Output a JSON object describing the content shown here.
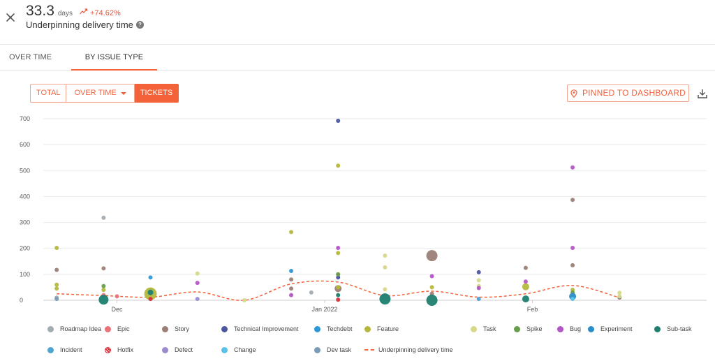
{
  "header": {
    "metric_value": "33.3",
    "metric_unit": "days",
    "metric_change": "+74.62%",
    "metric_title": "Underpinning delivery time",
    "help_glyph": "?",
    "colors": {
      "change": "#e5533d",
      "accent": "#f4623a"
    }
  },
  "tabs": [
    {
      "label": "OVER TIME"
    },
    {
      "label": "BY ISSUE TYPE",
      "active": true
    }
  ],
  "toolbar": {
    "total_label": "TOTAL",
    "overtime_label": "OVER TIME",
    "tickets_label": "TICKETS",
    "pin_label": "PINNED TO DASHBOARD"
  },
  "chart_data": {
    "type": "scatter",
    "title": "",
    "xlabel": "",
    "ylabel": "",
    "x_type": "date",
    "xlim": [
      "2021-11-20",
      "2022-02-27"
    ],
    "ylim": [
      0,
      700
    ],
    "y_ticks": [
      0,
      100,
      200,
      300,
      400,
      500,
      600,
      700
    ],
    "x_ticks": [
      {
        "date": "2021-12-01",
        "label": "Dec"
      },
      {
        "date": "2022-01-01",
        "label": "Jan 2022"
      },
      {
        "date": "2022-02-01",
        "label": "Feb"
      }
    ],
    "grid": "horizontal",
    "legend_position": "bottom",
    "series": [
      {
        "name": "Roadmap Idea",
        "color": "#a2abb0",
        "points": [
          {
            "x": "2021-11-22",
            "y": 10,
            "r": 3
          },
          {
            "x": "2021-11-29",
            "y": 318,
            "r": 3
          },
          {
            "x": "2021-12-30",
            "y": 30,
            "r": 3
          }
        ]
      },
      {
        "name": "Epic",
        "color": "#e8737a",
        "points": [
          {
            "x": "2021-11-29",
            "y": 20,
            "r": 3
          },
          {
            "x": "2021-12-01",
            "y": 15,
            "r": 3
          }
        ]
      },
      {
        "name": "Story",
        "color": "#9c7f77",
        "points": [
          {
            "x": "2021-11-22",
            "y": 117,
            "r": 3
          },
          {
            "x": "2021-11-29",
            "y": 123,
            "r": 3
          },
          {
            "x": "2021-12-27",
            "y": 45,
            "r": 3
          },
          {
            "x": "2021-12-27",
            "y": 80,
            "r": 3
          },
          {
            "x": "2022-01-03",
            "y": 45,
            "r": 5
          },
          {
            "x": "2022-01-03",
            "y": 100,
            "r": 3
          },
          {
            "x": "2022-01-17",
            "y": 172,
            "r": 8
          },
          {
            "x": "2022-01-17",
            "y": 25,
            "r": 3
          },
          {
            "x": "2022-01-31",
            "y": 125,
            "r": 3
          },
          {
            "x": "2022-02-07",
            "y": 387,
            "r": 3
          },
          {
            "x": "2022-02-07",
            "y": 135,
            "r": 3
          },
          {
            "x": "2022-02-14",
            "y": 10,
            "r": 3
          }
        ]
      },
      {
        "name": "Technical Improvement",
        "color": "#4c55a0",
        "points": [
          {
            "x": "2022-01-03",
            "y": 692,
            "r": 3
          },
          {
            "x": "2022-01-03",
            "y": 88,
            "r": 3
          },
          {
            "x": "2022-01-24",
            "y": 108,
            "r": 3
          }
        ]
      },
      {
        "name": "Techdebt",
        "color": "#2e98d9",
        "points": [
          {
            "x": "2021-12-06",
            "y": 88,
            "r": 3
          },
          {
            "x": "2021-12-27",
            "y": 113,
            "r": 3
          },
          {
            "x": "2021-12-06",
            "y": 40,
            "r": 3
          }
        ]
      },
      {
        "name": "Feature",
        "color": "#b5b83c",
        "points": [
          {
            "x": "2021-11-22",
            "y": 202,
            "r": 3
          },
          {
            "x": "2021-11-22",
            "y": 60,
            "r": 3
          },
          {
            "x": "2021-11-22",
            "y": 45,
            "r": 3
          },
          {
            "x": "2021-11-29",
            "y": 40,
            "r": 3
          },
          {
            "x": "2021-12-06",
            "y": 25,
            "r": 9
          },
          {
            "x": "2021-12-27",
            "y": 263,
            "r": 3
          },
          {
            "x": "2022-01-03",
            "y": 519,
            "r": 3
          },
          {
            "x": "2022-01-03",
            "y": 182,
            "r": 3
          },
          {
            "x": "2022-01-03",
            "y": 50,
            "r": 3
          },
          {
            "x": "2022-01-17",
            "y": 50,
            "r": 3
          },
          {
            "x": "2022-01-31",
            "y": 52,
            "r": 5
          },
          {
            "x": "2022-02-07",
            "y": 40,
            "r": 3
          }
        ]
      },
      {
        "name": "Task",
        "color": "#d5d889",
        "points": [
          {
            "x": "2021-12-13",
            "y": 103,
            "r": 3
          },
          {
            "x": "2021-12-20",
            "y": 0,
            "r": 3
          },
          {
            "x": "2022-01-10",
            "y": 172,
            "r": 3
          },
          {
            "x": "2022-01-10",
            "y": 127,
            "r": 3
          },
          {
            "x": "2022-01-10",
            "y": 42,
            "r": 3
          },
          {
            "x": "2022-01-24",
            "y": 77,
            "r": 3
          },
          {
            "x": "2022-01-24",
            "y": 55,
            "r": 3
          },
          {
            "x": "2022-02-14",
            "y": 29,
            "r": 3
          },
          {
            "x": "2022-02-14",
            "y": 15,
            "r": 3
          }
        ]
      },
      {
        "name": "Spike",
        "color": "#6a9e4f",
        "points": [
          {
            "x": "2021-11-29",
            "y": 55,
            "r": 3
          },
          {
            "x": "2022-01-03",
            "y": 100,
            "r": 3
          },
          {
            "x": "2022-02-07",
            "y": 30,
            "r": 3
          }
        ]
      },
      {
        "name": "Bug",
        "color": "#b456c6",
        "points": [
          {
            "x": "2021-12-13",
            "y": 67,
            "r": 3
          },
          {
            "x": "2021-12-27",
            "y": 20,
            "r": 3
          },
          {
            "x": "2022-01-03",
            "y": 202,
            "r": 3
          },
          {
            "x": "2022-01-17",
            "y": 93,
            "r": 3
          },
          {
            "x": "2022-01-24",
            "y": 47,
            "r": 3
          },
          {
            "x": "2022-01-31",
            "y": 72,
            "r": 3
          },
          {
            "x": "2022-02-07",
            "y": 512,
            "r": 3
          },
          {
            "x": "2022-02-07",
            "y": 202,
            "r": 3
          }
        ]
      },
      {
        "name": "Experiment",
        "color": "#2b8dc7",
        "points": [
          {
            "x": "2022-02-07",
            "y": 15,
            "r": 5
          }
        ]
      },
      {
        "name": "Sub-task",
        "color": "#1e8070",
        "points": [
          {
            "x": "2021-11-29",
            "y": 2,
            "r": 7
          },
          {
            "x": "2021-12-06",
            "y": 30,
            "r": 4
          },
          {
            "x": "2022-01-03",
            "y": 20,
            "r": 3
          },
          {
            "x": "2022-01-10",
            "y": 5,
            "r": 8
          },
          {
            "x": "2022-01-17",
            "y": 0,
            "r": 8
          },
          {
            "x": "2022-01-31",
            "y": 5,
            "r": 5
          }
        ]
      },
      {
        "name": "Incident",
        "color": "#4fa3cf",
        "points": [
          {
            "x": "2022-01-24",
            "y": 5,
            "r": 3
          }
        ]
      },
      {
        "name": "Hotfix",
        "color": "#d8333f",
        "points": [
          {
            "x": "2021-12-06",
            "y": 5,
            "r": 3
          },
          {
            "x": "2022-01-03",
            "y": 2,
            "r": 3
          }
        ]
      },
      {
        "name": "Defect",
        "color": "#9a8ccc",
        "points": [
          {
            "x": "2021-12-13",
            "y": 5,
            "r": 3
          }
        ]
      },
      {
        "name": "Change",
        "color": "#5bc2e7",
        "points": [
          {
            "x": "2022-02-07",
            "y": 5,
            "r": 3
          }
        ]
      },
      {
        "name": "Dev task",
        "color": "#7c9bb8",
        "points": [
          {
            "x": "2021-11-22",
            "y": 5,
            "r": 3
          }
        ]
      }
    ],
    "line_series": {
      "name": "Underpinning delivery time",
      "color": "#f4623a",
      "style": "dashed",
      "points": [
        {
          "x": "2021-11-22",
          "y": 25
        },
        {
          "x": "2021-11-29",
          "y": 18
        },
        {
          "x": "2021-12-06",
          "y": 12
        },
        {
          "x": "2021-12-13",
          "y": 32
        },
        {
          "x": "2021-12-20",
          "y": 0
        },
        {
          "x": "2021-12-27",
          "y": 63
        },
        {
          "x": "2022-01-03",
          "y": 70
        },
        {
          "x": "2022-01-10",
          "y": 18
        },
        {
          "x": "2022-01-17",
          "y": 35
        },
        {
          "x": "2022-01-24",
          "y": 12
        },
        {
          "x": "2022-01-31",
          "y": 25
        },
        {
          "x": "2022-02-07",
          "y": 57
        },
        {
          "x": "2022-02-14",
          "y": 10
        }
      ]
    }
  },
  "legend": [
    {
      "label": "Roadmap Idea",
      "color": "#a2abb0",
      "icon": "dot"
    },
    {
      "label": "Epic",
      "color": "#e8737a",
      "icon": "dot"
    },
    {
      "label": "Story",
      "color": "#9c7f77",
      "icon": "dot"
    },
    {
      "label": "Technical Improvement",
      "color": "#4c55a0",
      "icon": "dot"
    },
    {
      "label": "Techdebt",
      "color": "#2e98d9",
      "icon": "dot"
    },
    {
      "label": "Feature",
      "color": "#b5b83c",
      "icon": "dot"
    },
    {
      "label": "Task",
      "color": "#d5d889",
      "icon": "dot"
    },
    {
      "label": "Spike",
      "color": "#6a9e4f",
      "icon": "dot"
    },
    {
      "label": "Bug",
      "color": "#b456c6",
      "icon": "dot"
    },
    {
      "label": "Experiment",
      "color": "#2b8dc7",
      "icon": "dot"
    },
    {
      "label": "Sub-task",
      "color": "#1e8070",
      "icon": "dot"
    },
    {
      "label": "Incident",
      "color": "#4fa3cf",
      "icon": "dot"
    },
    {
      "label": "Hotfix",
      "color": "#d8333f",
      "icon": "pattern-dot"
    },
    {
      "label": "Defect",
      "color": "#9a8ccc",
      "icon": "dot"
    },
    {
      "label": "Change",
      "color": "#5bc2e7",
      "icon": "dot"
    },
    {
      "label": "Dev task",
      "color": "#7c9bb8",
      "icon": "dot"
    },
    {
      "label": "Underpinning delivery time",
      "color": "#f4623a",
      "icon": "dashed-line"
    }
  ]
}
